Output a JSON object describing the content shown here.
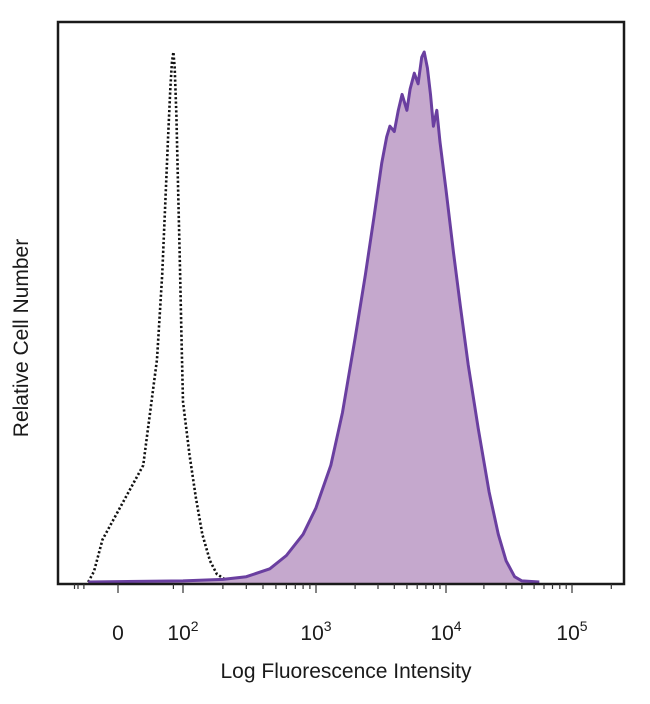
{
  "chart_data": {
    "type": "area",
    "xlabel": "Log Fluorescence Intensity",
    "ylabel": "Relative Cell Number",
    "x_scale": "biexponential",
    "x_ticks": [
      {
        "value": 0,
        "base": "0",
        "exp": ""
      },
      {
        "value": 100,
        "base": "10",
        "exp": "2"
      },
      {
        "value": 1000,
        "base": "10",
        "exp": "3"
      },
      {
        "value": 10000,
        "base": "10",
        "exp": "4"
      },
      {
        "value": 100000,
        "base": "10",
        "exp": "5"
      }
    ],
    "xlim": [
      -200,
      250000
    ],
    "ylim": [
      0,
      1.0
    ],
    "grid": false,
    "series": [
      {
        "style": "dotted",
        "color": "#111111",
        "fill": "none",
        "points": [
          [
            -30,
            0.0
          ],
          [
            -15,
            0.02
          ],
          [
            -5,
            0.08
          ],
          [
            5,
            0.22
          ],
          [
            15,
            0.42
          ],
          [
            22,
            0.58
          ],
          [
            28,
            0.72
          ],
          [
            34,
            0.84
          ],
          [
            40,
            0.93
          ],
          [
            45,
            0.98
          ],
          [
            50,
            1.0
          ],
          [
            55,
            0.97
          ],
          [
            62,
            0.88
          ],
          [
            70,
            0.75
          ],
          [
            80,
            0.6
          ],
          [
            90,
            0.46
          ],
          [
            100,
            0.34
          ],
          [
            112,
            0.24
          ],
          [
            125,
            0.16
          ],
          [
            140,
            0.09
          ],
          [
            160,
            0.04
          ],
          [
            180,
            0.015
          ],
          [
            210,
            0.004
          ],
          [
            250,
            0.0
          ]
        ]
      },
      {
        "style": "solid",
        "color": "#6a3fa0",
        "fill": "#c5a8cd",
        "points": [
          [
            -30,
            0.0
          ],
          [
            100,
            0.002
          ],
          [
            200,
            0.005
          ],
          [
            300,
            0.01
          ],
          [
            450,
            0.025
          ],
          [
            600,
            0.05
          ],
          [
            800,
            0.09
          ],
          [
            1000,
            0.14
          ],
          [
            1300,
            0.22
          ],
          [
            1600,
            0.32
          ],
          [
            2000,
            0.46
          ],
          [
            2400,
            0.58
          ],
          [
            2800,
            0.69
          ],
          [
            3200,
            0.79
          ],
          [
            3500,
            0.84
          ],
          [
            3700,
            0.86
          ],
          [
            4000,
            0.85
          ],
          [
            4300,
            0.89
          ],
          [
            4600,
            0.92
          ],
          [
            5000,
            0.89
          ],
          [
            5300,
            0.93
          ],
          [
            5700,
            0.96
          ],
          [
            6100,
            0.94
          ],
          [
            6500,
            0.99
          ],
          [
            6800,
            1.0
          ],
          [
            7200,
            0.97
          ],
          [
            7600,
            0.92
          ],
          [
            8000,
            0.86
          ],
          [
            8500,
            0.89
          ],
          [
            9000,
            0.83
          ],
          [
            10000,
            0.74
          ],
          [
            11500,
            0.62
          ],
          [
            13000,
            0.52
          ],
          [
            15000,
            0.41
          ],
          [
            18000,
            0.29
          ],
          [
            22000,
            0.17
          ],
          [
            26000,
            0.09
          ],
          [
            30000,
            0.04
          ],
          [
            35000,
            0.01
          ],
          [
            40000,
            0.002
          ],
          [
            55000,
            0.0
          ]
        ]
      }
    ]
  }
}
